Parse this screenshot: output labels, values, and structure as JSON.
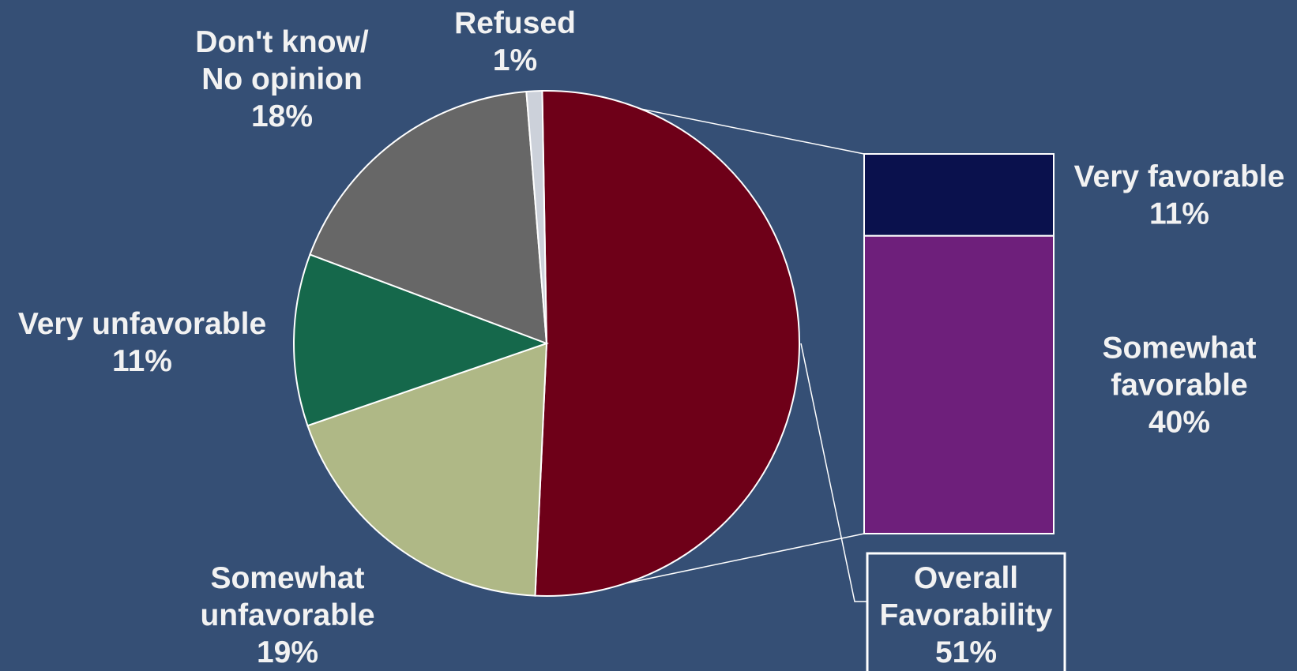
{
  "colors": {
    "background": "#354f75",
    "outline": "#ffffff",
    "label": "#f2f2f2"
  },
  "chart_data": {
    "type": "pie",
    "subtype": "bar-of-pie",
    "slices": [
      {
        "id": "favorable",
        "label_lines": [
          "Overall",
          "Favorability",
          "51%"
        ],
        "value": 51,
        "color": "#6e0018"
      },
      {
        "id": "somewhat-unfavorable",
        "label_lines": [
          "Somewhat",
          "unfavorable",
          "19%"
        ],
        "value": 19,
        "color": "#afb886"
      },
      {
        "id": "very-unfavorable",
        "label_lines": [
          "Very unfavorable",
          "11%"
        ],
        "value": 11,
        "color": "#15684b"
      },
      {
        "id": "dont-know",
        "label_lines": [
          "Don't know/",
          "No opinion",
          "18%"
        ],
        "value": 18,
        "color": "#676767"
      },
      {
        "id": "refused",
        "label_lines": [
          "Refused",
          "1%"
        ],
        "value": 1,
        "color": "#ccd1da"
      }
    ],
    "breakdown": {
      "of_slice": "favorable",
      "segments": [
        {
          "id": "very-favorable",
          "label_lines": [
            "Very favorable",
            "11%"
          ],
          "value": 11,
          "color": "#0a114d"
        },
        {
          "id": "somewhat-favorable",
          "label_lines": [
            "Somewhat",
            "favorable",
            "40%"
          ],
          "value": 40,
          "color": "#6e1f7b"
        }
      ]
    }
  }
}
